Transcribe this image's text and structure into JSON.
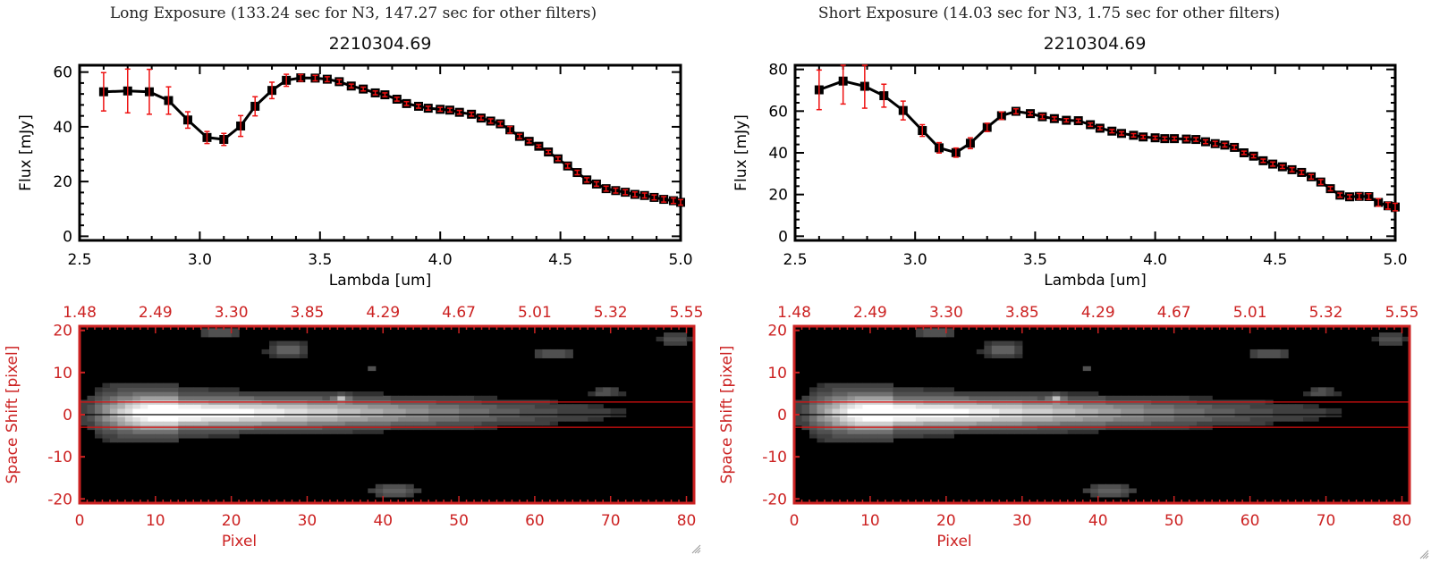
{
  "panels": [
    {
      "title": "Long Exposure (133.24 sec for N3, 147.27 sec for other filters)",
      "subtitle": "2210304.69"
    },
    {
      "title": "Short Exposure (14.03 sec for N3, 1.75 sec for other filters)",
      "subtitle": "2210304.69"
    }
  ],
  "colors": {
    "frame_black": "#000000",
    "accent_red": "#cc2222",
    "errorbar_red": "#ee1111"
  },
  "chart_data": [
    {
      "type": "line",
      "name": "long-exposure-spectrum",
      "title": "2210304.69",
      "xlabel": "Lambda [um]",
      "ylabel": "Flux [mJy]",
      "xlim": [
        2.5,
        5.0
      ],
      "ylim": [
        -1.5,
        62.5
      ],
      "xticks": [
        2.5,
        3.0,
        3.5,
        4.0,
        4.5,
        5.0
      ],
      "xtick_labels": [
        "2.5",
        "3.0",
        "3.5",
        "4.0",
        "4.5",
        "5.0"
      ],
      "yticks": [
        0,
        20,
        40,
        60
      ],
      "ytick_labels": [
        "0",
        "20",
        "40",
        "60"
      ],
      "x": [
        2.6,
        2.7,
        2.79,
        2.87,
        2.95,
        3.03,
        3.1,
        3.17,
        3.23,
        3.3,
        3.36,
        3.42,
        3.48,
        3.53,
        3.58,
        3.63,
        3.68,
        3.73,
        3.77,
        3.82,
        3.86,
        3.91,
        3.95,
        4.0,
        4.04,
        4.08,
        4.13,
        4.17,
        4.21,
        4.25,
        4.29,
        4.33,
        4.37,
        4.41,
        4.45,
        4.49,
        4.53,
        4.57,
        4.61,
        4.65,
        4.69,
        4.73,
        4.77,
        4.81,
        4.85,
        4.89,
        4.93,
        4.97,
        5.0
      ],
      "y": [
        52.8,
        53.1,
        52.8,
        49.6,
        42.5,
        36.1,
        35.4,
        40.3,
        47.5,
        53.3,
        57.0,
        57.9,
        57.8,
        57.4,
        56.5,
        54.9,
        53.8,
        52.4,
        51.7,
        50.1,
        48.5,
        47.5,
        46.8,
        46.4,
        46.1,
        45.3,
        44.6,
        43.2,
        42.1,
        41.1,
        38.9,
        36.5,
        34.7,
        32.9,
        30.8,
        28.3,
        25.7,
        23.3,
        20.6,
        19.1,
        17.4,
        16.7,
        16.1,
        15.3,
        14.9,
        14.2,
        13.5,
        13.0,
        12.4
      ],
      "yerr": [
        7.0,
        8.0,
        8.2,
        5.0,
        3.0,
        2.2,
        2.2,
        3.8,
        3.5,
        3.0,
        2.2,
        1.2,
        1.0,
        0.9,
        0.8,
        0.7,
        0.7,
        0.7,
        0.7,
        0.7,
        0.7,
        0.7,
        0.7,
        0.7,
        0.7,
        0.7,
        0.7,
        0.7,
        0.8,
        0.8,
        1.2,
        0.8,
        0.6,
        0.5,
        0.6,
        0.7,
        0.8,
        0.8,
        0.8,
        0.8,
        0.9,
        0.9,
        0.9,
        0.9,
        0.9,
        0.9,
        1.0,
        1.0,
        1.0
      ]
    },
    {
      "type": "line",
      "name": "short-exposure-spectrum",
      "title": "2210304.69",
      "xlabel": "Lambda [um]",
      "ylabel": "Flux [mJy]",
      "xlim": [
        2.5,
        5.0
      ],
      "ylim": [
        -2,
        82
      ],
      "xticks": [
        2.5,
        3.0,
        3.5,
        4.0,
        4.5,
        5.0
      ],
      "xtick_labels": [
        "2.5",
        "3.0",
        "3.5",
        "4.0",
        "4.5",
        "5.0"
      ],
      "yticks": [
        0,
        20,
        40,
        60,
        80
      ],
      "ytick_labels": [
        "0",
        "20",
        "40",
        "60",
        "80"
      ],
      "x": [
        2.6,
        2.7,
        2.79,
        2.87,
        2.95,
        3.03,
        3.1,
        3.17,
        3.23,
        3.3,
        3.36,
        3.42,
        3.48,
        3.53,
        3.58,
        3.63,
        3.68,
        3.73,
        3.77,
        3.82,
        3.86,
        3.91,
        3.95,
        4.0,
        4.04,
        4.08,
        4.13,
        4.17,
        4.21,
        4.25,
        4.29,
        4.33,
        4.37,
        4.41,
        4.45,
        4.49,
        4.53,
        4.57,
        4.61,
        4.65,
        4.69,
        4.73,
        4.77,
        4.81,
        4.85,
        4.89,
        4.93,
        4.97,
        5.0
      ],
      "y": [
        70.2,
        74.4,
        71.9,
        67.4,
        60.3,
        50.7,
        42.4,
        40.1,
        44.6,
        52.2,
        57.8,
        59.9,
        58.8,
        57.3,
        56.4,
        55.6,
        55.4,
        53.5,
        51.8,
        50.4,
        49.3,
        48.4,
        47.6,
        47.2,
        46.8,
        46.8,
        46.6,
        46.4,
        45.3,
        44.4,
        43.7,
        42.6,
        40.0,
        38.4,
        36.2,
        34.6,
        33.3,
        31.9,
        30.6,
        28.5,
        26.0,
        22.8,
        19.7,
        18.9,
        19.1,
        19.0,
        16.2,
        14.6,
        14.0
      ],
      "yerr": [
        9.5,
        11.0,
        10.5,
        5.5,
        4.5,
        2.8,
        2.5,
        2.2,
        2.6,
        2.0,
        1.8,
        1.2,
        0.8,
        1.0,
        0.8,
        0.8,
        0.8,
        0.8,
        0.8,
        0.8,
        0.8,
        0.8,
        0.8,
        0.8,
        0.8,
        0.8,
        0.9,
        0.9,
        0.9,
        1.1,
        0.9,
        1.0,
        0.8,
        0.8,
        0.8,
        1.0,
        0.8,
        1.0,
        1.0,
        1.1,
        1.2,
        1.0,
        1.0,
        1.0,
        1.4,
        1.4,
        1.8,
        1.6,
        1.8
      ]
    },
    {
      "type": "heatmap",
      "name": "long-exposure-2d-image",
      "xlabel": "Pixel",
      "ylabel": "Space Shift [pixel]",
      "xlim": [
        0,
        81
      ],
      "ylim": [
        -21,
        21
      ],
      "xticks": [
        0,
        10,
        20,
        30,
        40,
        50,
        60,
        70,
        80
      ],
      "xtick_labels": [
        "0",
        "10",
        "20",
        "30",
        "40",
        "50",
        "60",
        "70",
        "80"
      ],
      "yticks": [
        -20,
        -10,
        0,
        10,
        20
      ],
      "ytick_labels": [
        "-20",
        "-10",
        "0",
        "10",
        "20"
      ],
      "top_axis_label_positions": [
        0,
        10,
        20,
        30,
        40,
        50,
        60,
        70,
        80
      ],
      "top_axis_labels": [
        "1.48",
        "2.49",
        "3.30",
        "3.85",
        "4.29",
        "4.67",
        "5.01",
        "5.32",
        "5.55"
      ],
      "aperture_lines": [
        -3,
        3
      ],
      "center_line": 0,
      "sources": [
        {
          "x": 10,
          "y": 0.5,
          "amp": 1.0,
          "sx": 5.0,
          "sy": 2.2,
          "tail_to": 62
        },
        {
          "x": 18,
          "y": 19.5,
          "amp": 0.28,
          "sx": 2.2,
          "sy": 1.0
        },
        {
          "x": 27,
          "y": 15.5,
          "amp": 0.32,
          "sx": 2.0,
          "sy": 1.4
        },
        {
          "x": 62,
          "y": 14.5,
          "amp": 0.28,
          "sx": 1.8,
          "sy": 1.0
        },
        {
          "x": 69,
          "y": 5.5,
          "amp": 0.25,
          "sx": 1.5,
          "sy": 0.9
        },
        {
          "x": 78,
          "y": 18,
          "amp": 0.25,
          "sx": 1.6,
          "sy": 1.0
        },
        {
          "x": 41,
          "y": -18,
          "amp": 0.32,
          "sx": 2.2,
          "sy": 1.3
        },
        {
          "x": 34,
          "y": 4,
          "amp": 0.45,
          "sx": 0.6,
          "sy": 0.6
        },
        {
          "x": 38,
          "y": 11,
          "amp": 0.18,
          "sx": 0.6,
          "sy": 0.6
        }
      ]
    },
    {
      "type": "heatmap",
      "name": "short-exposure-2d-image",
      "xlabel": "Pixel",
      "ylabel": "Space Shift [pixel]",
      "xlim": [
        0,
        81
      ],
      "ylim": [
        -21,
        21
      ],
      "xticks": [
        0,
        10,
        20,
        30,
        40,
        50,
        60,
        70,
        80
      ],
      "xtick_labels": [
        "0",
        "10",
        "20",
        "30",
        "40",
        "50",
        "60",
        "70",
        "80"
      ],
      "yticks": [
        -20,
        -10,
        0,
        10,
        20
      ],
      "ytick_labels": [
        "-20",
        "-10",
        "0",
        "10",
        "20"
      ],
      "top_axis_label_positions": [
        0,
        10,
        20,
        30,
        40,
        50,
        60,
        70,
        80
      ],
      "top_axis_labels": [
        "1.48",
        "2.49",
        "3.30",
        "3.85",
        "4.29",
        "4.67",
        "5.01",
        "5.32",
        "5.55"
      ],
      "aperture_lines": [
        -3,
        3
      ],
      "center_line": 0,
      "sources": [
        {
          "x": 10,
          "y": 0.5,
          "amp": 1.0,
          "sx": 5.0,
          "sy": 2.2,
          "tail_to": 62
        },
        {
          "x": 18,
          "y": 19.5,
          "amp": 0.28,
          "sx": 2.2,
          "sy": 1.0
        },
        {
          "x": 27,
          "y": 15.5,
          "amp": 0.32,
          "sx": 2.0,
          "sy": 1.4
        },
        {
          "x": 62,
          "y": 14.5,
          "amp": 0.28,
          "sx": 1.8,
          "sy": 1.0
        },
        {
          "x": 69,
          "y": 5.5,
          "amp": 0.25,
          "sx": 1.5,
          "sy": 0.9
        },
        {
          "x": 78,
          "y": 18,
          "amp": 0.25,
          "sx": 1.6,
          "sy": 1.0
        },
        {
          "x": 41,
          "y": -18,
          "amp": 0.32,
          "sx": 2.2,
          "sy": 1.3
        },
        {
          "x": 34,
          "y": 4,
          "amp": 0.45,
          "sx": 0.6,
          "sy": 0.6
        },
        {
          "x": 38,
          "y": 11,
          "amp": 0.18,
          "sx": 0.6,
          "sy": 0.6
        }
      ]
    }
  ]
}
